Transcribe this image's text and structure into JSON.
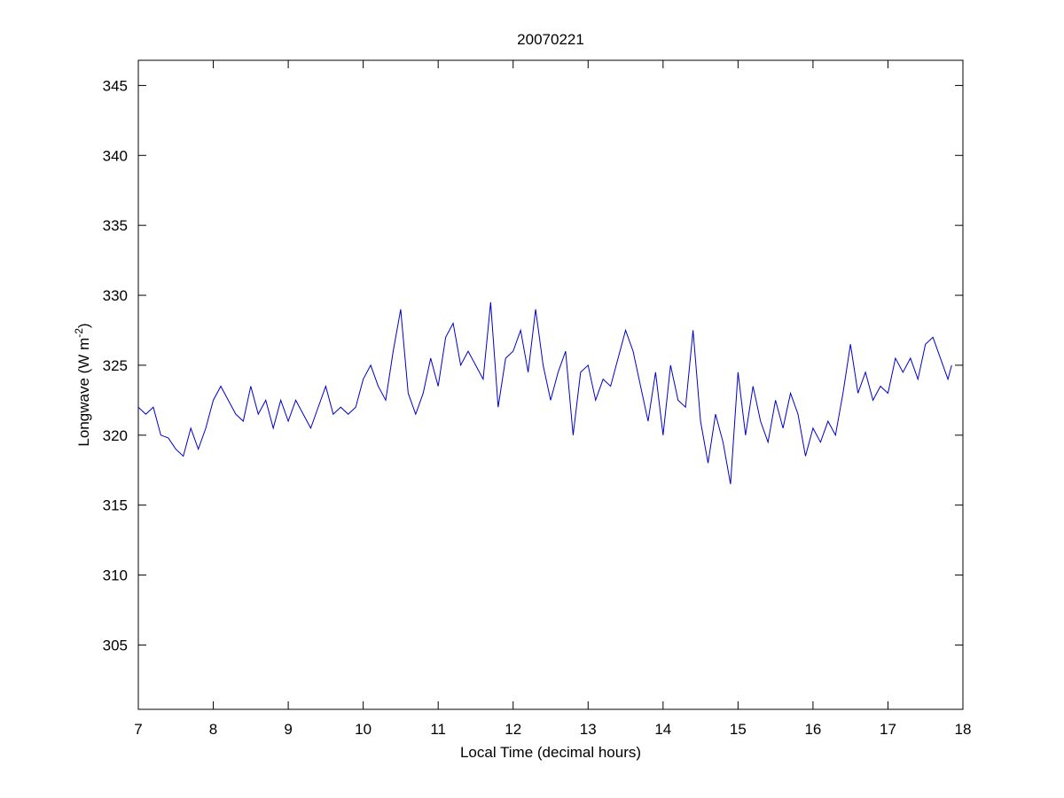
{
  "chart_data": {
    "type": "line",
    "title": "20070221",
    "xlabel": "Local Time (decimal hours)",
    "ylabel": [
      "Longwave (W m",
      "-2",
      ")"
    ],
    "x": [
      7.0,
      7.1,
      7.2,
      7.3,
      7.4,
      7.5,
      7.6,
      7.7,
      7.8,
      7.9,
      8.0,
      8.1,
      8.2,
      8.3,
      8.4,
      8.5,
      8.6,
      8.7,
      8.8,
      8.9,
      9.0,
      9.1,
      9.2,
      9.3,
      9.4,
      9.5,
      9.6,
      9.7,
      9.8,
      9.9,
      10.0,
      10.1,
      10.2,
      10.3,
      10.4,
      10.5,
      10.6,
      10.7,
      10.8,
      10.9,
      11.0,
      11.1,
      11.2,
      11.3,
      11.4,
      11.5,
      11.6,
      11.7,
      11.8,
      11.9,
      12.0,
      12.1,
      12.2,
      12.3,
      12.4,
      12.5,
      12.6,
      12.7,
      12.8,
      12.9,
      13.0,
      13.1,
      13.2,
      13.3,
      13.4,
      13.5,
      13.6,
      13.7,
      13.8,
      13.9,
      14.0,
      14.1,
      14.2,
      14.3,
      14.4,
      14.5,
      14.6,
      14.7,
      14.8,
      14.9,
      15.0,
      15.1,
      15.2,
      15.3,
      15.4,
      15.5,
      15.6,
      15.7,
      15.8,
      15.9,
      16.0,
      16.1,
      16.2,
      16.3,
      16.4,
      16.5,
      16.6,
      16.7,
      16.8,
      16.9,
      17.0,
      17.1,
      17.2,
      17.3,
      17.4,
      17.5,
      17.6,
      17.7,
      17.8,
      17.85
    ],
    "series": [
      {
        "name": "Longwave",
        "color": "#0000cc",
        "values": [
          322,
          321.5,
          322,
          320,
          319.8,
          319,
          318.5,
          320.5,
          319,
          320.5,
          322.5,
          323.5,
          322.5,
          321.5,
          321,
          323.5,
          321.5,
          322.5,
          320.5,
          322.5,
          321,
          322.5,
          321.5,
          320.5,
          322,
          323.5,
          321.5,
          322,
          321.5,
          322,
          324,
          325,
          323.5,
          322.5,
          326,
          329,
          323,
          321.5,
          323,
          325.5,
          323.5,
          327,
          328,
          325,
          326,
          325,
          324,
          329.5,
          322,
          325.5,
          326,
          327.5,
          324.5,
          329,
          325,
          322.5,
          324.5,
          326,
          320,
          324.5,
          325,
          322.5,
          324,
          323.5,
          325.5,
          327.5,
          326,
          323.5,
          321,
          324.5,
          320,
          325,
          322.5,
          322,
          327.5,
          321,
          318,
          321.5,
          319.5,
          316.5,
          324.5,
          320,
          323.5,
          321,
          319.5,
          322.5,
          320.5,
          323,
          321.5,
          318.5,
          320.5,
          319.5,
          321,
          320,
          323,
          326.5,
          323,
          324.5,
          322.5,
          323.5,
          323,
          325.5,
          324.5,
          325.5,
          324,
          326.5,
          327,
          325.5,
          324,
          325
        ]
      }
    ],
    "xlim": [
      7,
      18
    ],
    "ylim": [
      300.4,
      346.8
    ],
    "xticks": [
      7,
      8,
      9,
      10,
      11,
      12,
      13,
      14,
      15,
      16,
      17,
      18
    ],
    "yticks": [
      305,
      310,
      315,
      320,
      325,
      330,
      335,
      340,
      345
    ],
    "grid": false
  }
}
